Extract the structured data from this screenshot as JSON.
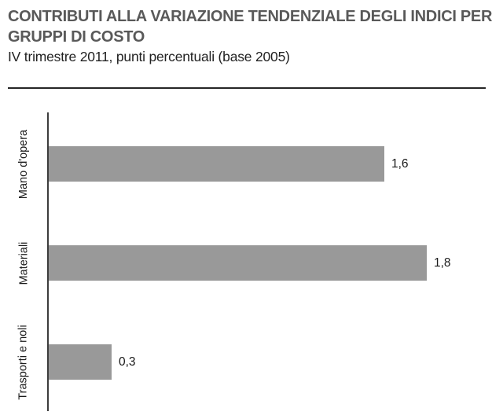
{
  "header": {
    "title": "CONTRIBUTI ALLA VARIAZIONE TENDENZIALE DEGLI INDICI PER GRUPPI DI COSTO",
    "subtitle": "IV trimestre 2011, punti percentuali (base 2005)"
  },
  "chart_data": {
    "type": "bar",
    "orientation": "horizontal",
    "title": "CONTRIBUTI ALLA VARIAZIONE TENDENZIALE DEGLI INDICI PER GRUPPI DI COSTO",
    "subtitle": "IV trimestre 2011, punti percentuali (base 2005)",
    "categories": [
      "Mano d'opera",
      "Materiali",
      "Trasporti e noli"
    ],
    "values": [
      1.6,
      1.8,
      0.3
    ],
    "value_labels": [
      "1,6",
      "1,8",
      "0,3"
    ],
    "xlabel": "",
    "ylabel": "",
    "xlim": [
      0,
      2.0
    ],
    "grid": false,
    "legend": false,
    "bar_color": "#999999"
  },
  "colors": {
    "title_text": "#595959",
    "body_text": "#1a1a1a",
    "bar": "#999999",
    "axis": "#3d3d3d",
    "divider": "#262626",
    "background": "#ffffff"
  }
}
